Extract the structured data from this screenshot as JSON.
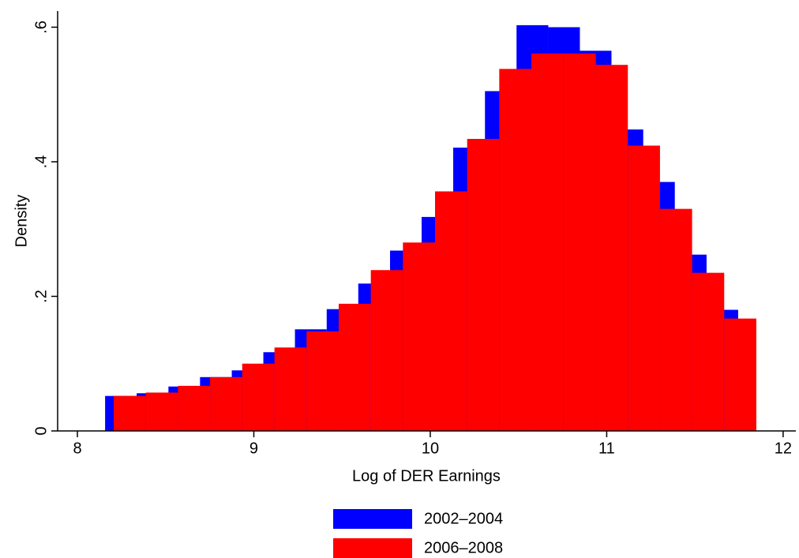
{
  "chart_data": {
    "type": "histogram",
    "x_label": "Log of DER Earnings",
    "y_label": "Density",
    "xlim": [
      7.888,
      12.072
    ],
    "ylim": [
      0,
      0.624
    ],
    "xticks": [
      8,
      9,
      10,
      11,
      12
    ],
    "yticks": [
      0,
      {
        "value": 0.2,
        "label": ".2"
      },
      {
        "value": 0.4,
        "label": ".4"
      },
      {
        "value": 0.6,
        "label": ".6"
      }
    ],
    "series": [
      {
        "name": "2002–2004",
        "color": "#0000ff",
        "bins": [
          8.157,
          8.336,
          8.516,
          8.695,
          8.875,
          9.054,
          9.233,
          9.413,
          9.592,
          9.772,
          9.951,
          10.13,
          10.31,
          10.489,
          10.669,
          10.848,
          11.027,
          11.207,
          11.386,
          11.566,
          11.745
        ],
        "values": [
          0.052,
          0.056,
          0.066,
          0.08,
          0.09,
          0.117,
          0.151,
          0.181,
          0.219,
          0.268,
          0.318,
          0.421,
          0.505,
          0.603,
          0.6,
          0.565,
          0.448,
          0.37,
          0.262,
          0.18
        ]
      },
      {
        "name": "2006–2008",
        "color": "#ff0000",
        "bins": [
          8.206,
          8.388,
          8.57,
          8.752,
          8.934,
          9.117,
          9.299,
          9.481,
          9.663,
          9.845,
          10.027,
          10.209,
          10.391,
          10.573,
          10.755,
          10.938,
          11.12,
          11.302,
          11.484,
          11.666,
          11.848
        ],
        "values": [
          0.052,
          0.057,
          0.067,
          0.08,
          0.1,
          0.124,
          0.148,
          0.189,
          0.239,
          0.28,
          0.356,
          0.434,
          0.538,
          0.561,
          0.561,
          0.544,
          0.424,
          0.33,
          0.235,
          0.167
        ]
      }
    ]
  }
}
